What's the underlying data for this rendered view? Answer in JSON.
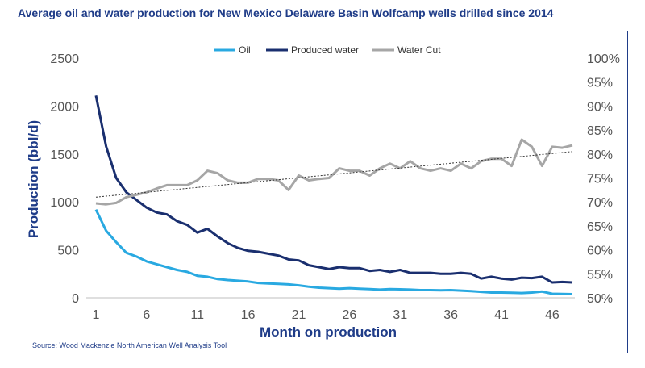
{
  "chart_data": {
    "type": "line",
    "title": "Average oil and water production for New Mexico Delaware Basin Wolfcamp wells drilled since 2014",
    "xlabel": "Month on production",
    "ylabel": "Production (bbl/d)",
    "y2label": "",
    "ylim": [
      0,
      2500
    ],
    "y2lim": [
      0.5,
      1.0
    ],
    "xlim": [
      1,
      48
    ],
    "xticks": [
      1,
      6,
      11,
      16,
      21,
      26,
      31,
      36,
      41,
      46
    ],
    "yticks": [
      0,
      500,
      1000,
      1500,
      2000,
      2500
    ],
    "y2ticks": [
      0.5,
      0.55,
      0.6,
      0.65,
      0.7,
      0.75,
      0.8,
      0.85,
      0.9,
      0.95,
      1.0
    ],
    "y2tick_labels": [
      "50%",
      "55%",
      "60%",
      "65%",
      "70%",
      "75%",
      "80%",
      "85%",
      "90%",
      "95%",
      "100%"
    ],
    "legend": [
      "Oil",
      "Produced water",
      "Water Cut"
    ],
    "legend_position": "top",
    "source": "Source: Wood Mackenzie North American Well Analysis Tool",
    "x": [
      1,
      2,
      3,
      4,
      5,
      6,
      7,
      8,
      9,
      10,
      11,
      12,
      13,
      14,
      15,
      16,
      17,
      18,
      19,
      20,
      21,
      22,
      23,
      24,
      25,
      26,
      27,
      28,
      29,
      30,
      31,
      32,
      33,
      34,
      35,
      36,
      37,
      38,
      39,
      40,
      41,
      42,
      43,
      44,
      45,
      46,
      47,
      48
    ],
    "series": [
      {
        "name": "Oil",
        "axis": "left",
        "color": "#29a9e1",
        "values": [
          920,
          700,
          580,
          470,
          430,
          380,
          350,
          320,
          290,
          270,
          230,
          220,
          195,
          185,
          178,
          170,
          155,
          150,
          145,
          140,
          130,
          115,
          105,
          100,
          95,
          100,
          95,
          90,
          85,
          90,
          88,
          85,
          80,
          80,
          78,
          80,
          75,
          70,
          62,
          55,
          55,
          52,
          50,
          55,
          65,
          42,
          40,
          38
        ]
      },
      {
        "name": "Produced water",
        "axis": "left",
        "color": "#1a2f6f",
        "values": [
          2110,
          1580,
          1250,
          1100,
          1020,
          940,
          890,
          870,
          800,
          760,
          680,
          720,
          640,
          570,
          520,
          490,
          480,
          460,
          440,
          400,
          390,
          340,
          320,
          300,
          320,
          310,
          310,
          280,
          290,
          270,
          290,
          260,
          260,
          260,
          250,
          250,
          260,
          250,
          200,
          220,
          200,
          190,
          210,
          205,
          220,
          160,
          165,
          160
        ]
      },
      {
        "name": "Water Cut",
        "axis": "right",
        "color": "#a6a6a6",
        "values": [
          0.697,
          0.695,
          0.698,
          0.71,
          0.715,
          0.72,
          0.728,
          0.735,
          0.735,
          0.735,
          0.745,
          0.765,
          0.76,
          0.745,
          0.74,
          0.74,
          0.748,
          0.748,
          0.745,
          0.725,
          0.755,
          0.745,
          0.748,
          0.75,
          0.77,
          0.765,
          0.765,
          0.755,
          0.77,
          0.78,
          0.77,
          0.785,
          0.77,
          0.765,
          0.77,
          0.765,
          0.78,
          0.77,
          0.785,
          0.79,
          0.79,
          0.775,
          0.83,
          0.815,
          0.775,
          0.815,
          0.813,
          0.818
        ]
      }
    ],
    "trendline": {
      "series": "Water Cut",
      "style": "dotted",
      "start": [
        1,
        0.71
      ],
      "end": [
        48,
        0.805
      ],
      "color": "#333333"
    }
  }
}
